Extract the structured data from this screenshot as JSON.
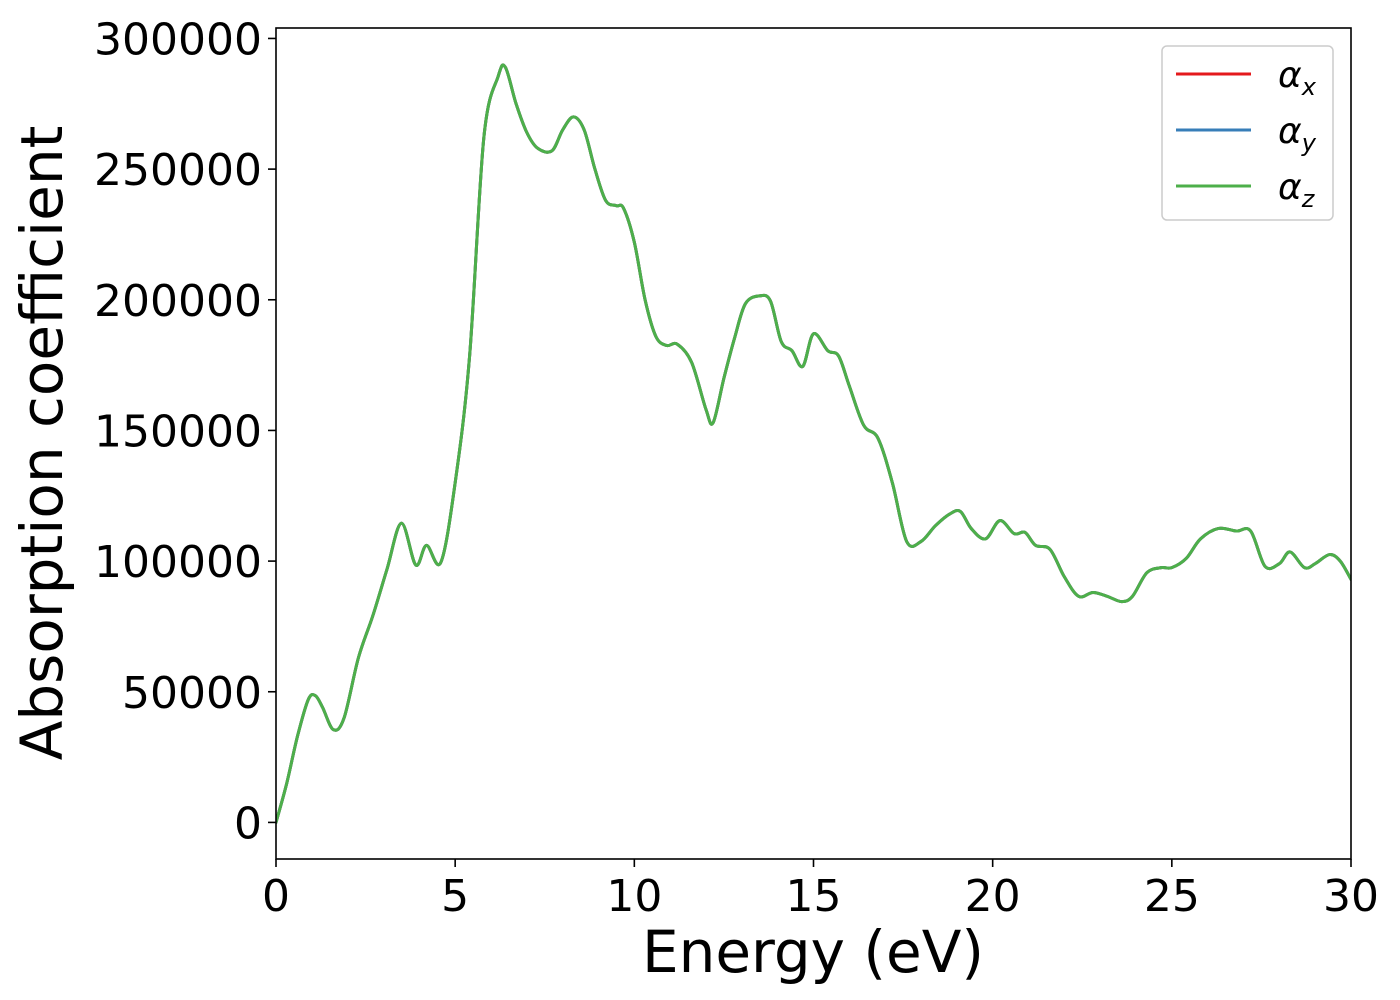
{
  "chart_data": {
    "type": "line",
    "title": "",
    "xlabel": "Energy (eV)",
    "ylabel": "Absorption coefficient",
    "xlim": [
      0,
      30
    ],
    "ylim": [
      -14000,
      304000
    ],
    "x_ticks": [
      0,
      5,
      10,
      15,
      20,
      25,
      30
    ],
    "y_ticks": [
      0,
      50000,
      100000,
      150000,
      200000,
      250000,
      300000
    ],
    "x_tick_labels": [
      "0",
      "5",
      "10",
      "15",
      "20",
      "25",
      "30"
    ],
    "y_tick_labels": [
      "0",
      "50000",
      "100000",
      "150000",
      "200000",
      "250000",
      "300000"
    ],
    "grid": false,
    "legend_position": "top-right",
    "x": [
      0,
      0.3,
      0.6,
      0.9,
      1.1,
      1.3,
      1.6,
      1.9,
      2.3,
      2.7,
      3.1,
      3.5,
      3.9,
      4.2,
      4.6,
      5.0,
      5.4,
      5.8,
      6.2,
      6.4,
      6.7,
      7.0,
      7.3,
      7.7,
      8.0,
      8.3,
      8.6,
      8.9,
      9.2,
      9.5,
      9.7,
      10.0,
      10.3,
      10.6,
      10.9,
      11.2,
      11.6,
      12.0,
      12.2,
      12.5,
      12.8,
      13.1,
      13.5,
      13.8,
      14.1,
      14.4,
      14.7,
      15.0,
      15.4,
      15.7,
      16.0,
      16.4,
      16.8,
      17.2,
      17.6,
      18.0,
      18.4,
      18.8,
      19.1,
      19.4,
      19.8,
      20.2,
      20.6,
      20.9,
      21.2,
      21.6,
      22.0,
      22.4,
      22.8,
      23.2,
      23.6,
      23.9,
      24.3,
      24.7,
      25.0,
      25.4,
      25.8,
      26.3,
      26.8,
      27.2,
      27.6,
      28.0,
      28.3,
      28.7,
      29.0,
      29.4,
      29.7,
      30.0
    ],
    "series": [
      {
        "name": "α",
        "subscript": "x",
        "color": "#e41a1c",
        "values": [
          0,
          15000,
          33000,
          47000,
          48500,
          44000,
          35500,
          40000,
          63000,
          79000,
          97000,
          114500,
          98500,
          106000,
          99500,
          130000,
          178000,
          262000,
          285500,
          289000,
          275000,
          264000,
          258000,
          257000,
          265000,
          270000,
          265000,
          250000,
          238000,
          236000,
          235000,
          222000,
          200000,
          186000,
          182500,
          183000,
          176000,
          158000,
          153000,
          170000,
          185500,
          198500,
          201500,
          199500,
          184000,
          180500,
          174500,
          187000,
          180500,
          178500,
          167000,
          152000,
          147000,
          130000,
          107500,
          107500,
          113500,
          118000,
          119000,
          112500,
          108500,
          115500,
          110500,
          111000,
          106000,
          104500,
          94000,
          86500,
          88000,
          86500,
          84500,
          86500,
          95500,
          97500,
          97500,
          101000,
          108500,
          112500,
          111500,
          111500,
          98000,
          99000,
          103500,
          97500,
          99000,
          102500,
          100000,
          93000
        ]
      },
      {
        "name": "α",
        "subscript": "y",
        "color": "#377eb8",
        "values": [
          0,
          15000,
          33000,
          47000,
          48500,
          44000,
          35500,
          40000,
          63000,
          79000,
          97000,
          114500,
          98500,
          106000,
          99500,
          130000,
          178000,
          262000,
          285500,
          289000,
          275000,
          264000,
          258000,
          257000,
          265000,
          270000,
          265000,
          250000,
          238000,
          236000,
          235000,
          222000,
          200000,
          186000,
          182500,
          183000,
          176000,
          158000,
          153000,
          170000,
          185500,
          198500,
          201500,
          199500,
          184000,
          180500,
          174500,
          187000,
          180500,
          178500,
          167000,
          152000,
          147000,
          130000,
          107500,
          107500,
          113500,
          118000,
          119000,
          112500,
          108500,
          115500,
          110500,
          111000,
          106000,
          104500,
          94000,
          86500,
          88000,
          86500,
          84500,
          86500,
          95500,
          97500,
          97500,
          101000,
          108500,
          112500,
          111500,
          111500,
          98000,
          99000,
          103500,
          97500,
          99000,
          102500,
          100000,
          93000
        ]
      },
      {
        "name": "α",
        "subscript": "z",
        "color": "#4daf4a",
        "values": [
          0,
          15000,
          33000,
          47000,
          48500,
          44000,
          35500,
          40000,
          63000,
          79000,
          97000,
          114500,
          98500,
          106000,
          99500,
          130000,
          178000,
          262000,
          285500,
          289000,
          275000,
          264000,
          258000,
          257000,
          265000,
          270000,
          265000,
          250000,
          238000,
          236000,
          235000,
          222000,
          200000,
          186000,
          182500,
          183000,
          176000,
          158000,
          153000,
          170000,
          185500,
          198500,
          201500,
          199500,
          184000,
          180500,
          174500,
          187000,
          180500,
          178500,
          167000,
          152000,
          147000,
          130000,
          107500,
          107500,
          113500,
          118000,
          119000,
          112500,
          108500,
          115500,
          110500,
          111000,
          106000,
          104500,
          94000,
          86500,
          88000,
          86500,
          84500,
          86500,
          95500,
          97500,
          97500,
          101000,
          108500,
          112500,
          111500,
          111500,
          98000,
          99000,
          103500,
          97500,
          99000,
          102500,
          100000,
          93000
        ]
      }
    ]
  }
}
